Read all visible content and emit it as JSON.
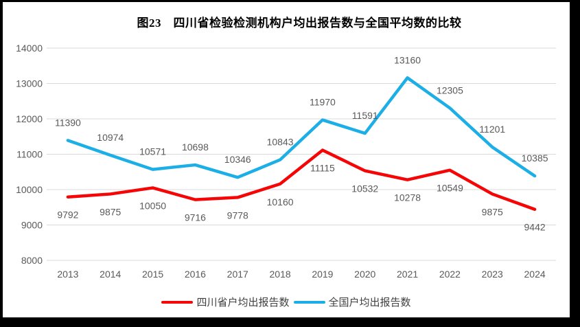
{
  "title": "图23　四川省检验检测机构户均出报告数与全国平均数的比较",
  "colors": {
    "sichuan_line": "#f50505",
    "national_line": "#1caee6",
    "grid": "#d9d9d9",
    "axis_text": "#595959",
    "data_label_text": "#595959",
    "title_text": "#000000",
    "legend_text": "#404040",
    "panel_background": "#ffffff",
    "frame_background": "#000000"
  },
  "chart_data": {
    "type": "line",
    "title": "图23　四川省检验检测机构户均出报告数与全国平均数的比较",
    "categories": [
      "2013",
      "2014",
      "2015",
      "2016",
      "2017",
      "2018",
      "2019",
      "2020",
      "2021",
      "2022",
      "2023",
      "2024"
    ],
    "series": [
      {
        "name": "四川省户均出报告数",
        "color": "#f50505",
        "label_position": "below",
        "values": [
          9792,
          9875,
          10050,
          9716,
          9778,
          10160,
          11115,
          10532,
          10278,
          10549,
          9875,
          9442
        ]
      },
      {
        "name": "全国户均出报告数",
        "color": "#1caee6",
        "label_position": "above",
        "values": [
          11390,
          10974,
          10571,
          10698,
          10346,
          10843,
          11970,
          11591,
          13160,
          12305,
          11201,
          10385
        ]
      }
    ],
    "xlabel": "",
    "ylabel": "",
    "ylim": [
      8000,
      14000
    ],
    "ytick_step": 1000,
    "yticks": [
      8000,
      9000,
      10000,
      11000,
      12000,
      13000,
      14000
    ],
    "grid": true,
    "data_labels": true,
    "legend_position": "bottom"
  },
  "legend": {
    "items": [
      {
        "label": "四川省户均出报告数"
      },
      {
        "label": "全国户均出报告数"
      }
    ]
  }
}
